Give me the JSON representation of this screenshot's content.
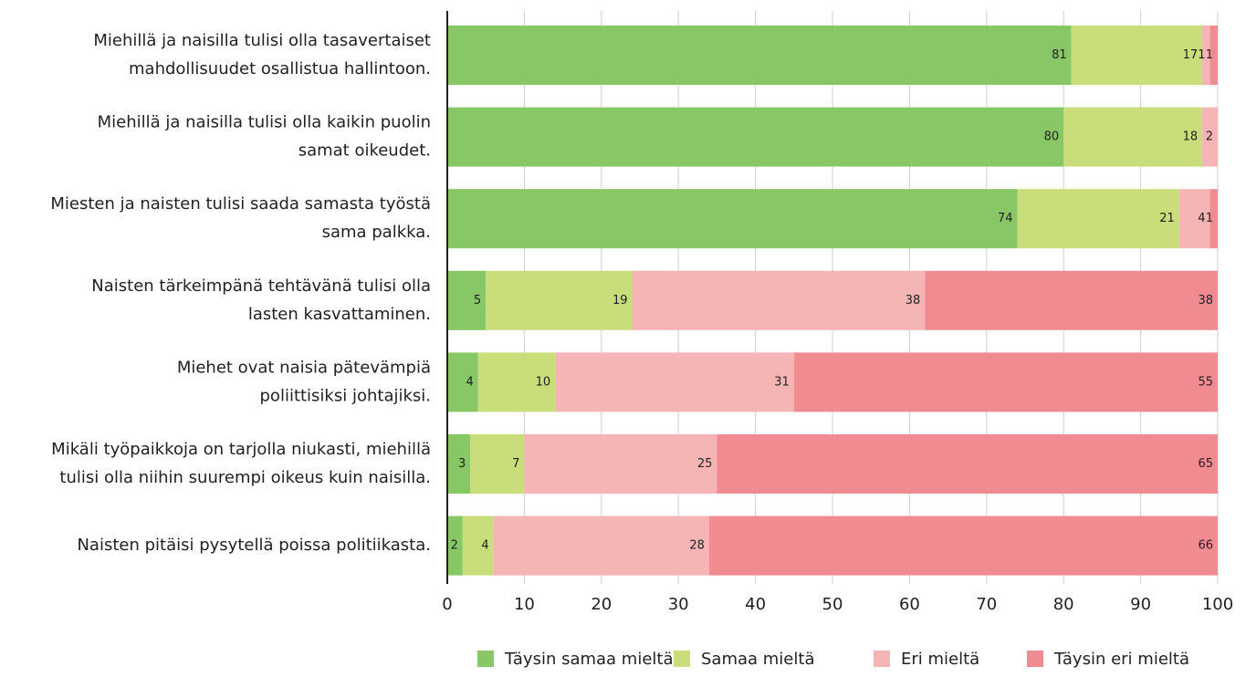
{
  "chart_data": {
    "type": "stacked-barh",
    "categories": [
      [
        "Miehillä ja naisilla tulisi olla tasavertaiset",
        "mahdollisuudet osallistua hallintoon."
      ],
      [
        "Miehillä ja naisilla tulisi olla kaikin puolin",
        "samat oikeudet."
      ],
      [
        "Miesten ja naisten tulisi saada samasta työstä",
        "sama palkka."
      ],
      [
        "Naisten tärkeimpänä tehtävänä tulisi olla",
        "lasten kasvattaminen."
      ],
      [
        "Miehet ovat naisia pätevämpiä",
        "poliittisiksi johtajiksi."
      ],
      [
        "Mikäli työpaikkoja on tarjolla niukasti, miehillä",
        "tulisi olla niihin suurempi oikeus kuin naisilla."
      ],
      [
        "Naisten pitäisi pysytellä poissa politiikasta."
      ]
    ],
    "series": [
      {
        "name": "Täysin samaa mieltä",
        "color": "#88c765",
        "values": [
          81,
          80,
          74,
          5,
          4,
          3,
          2
        ]
      },
      {
        "name": "Samaa mieltä",
        "color": "#c9dd7a",
        "values": [
          17,
          18,
          21,
          19,
          10,
          7,
          4
        ]
      },
      {
        "name": "Eri mieltä",
        "color": "#f6b5b5",
        "values": [
          1,
          2,
          4,
          38,
          31,
          25,
          28
        ]
      },
      {
        "name": "Täysin eri mieltä",
        "color": "#f08b92",
        "values": [
          1,
          null,
          1,
          38,
          55,
          65,
          66
        ]
      }
    ],
    "xlim": [
      0,
      100
    ],
    "xticks": [
      0,
      10,
      20,
      30,
      40,
      50,
      60,
      70,
      80,
      90,
      100
    ],
    "grid": true,
    "legend": "bottom"
  }
}
